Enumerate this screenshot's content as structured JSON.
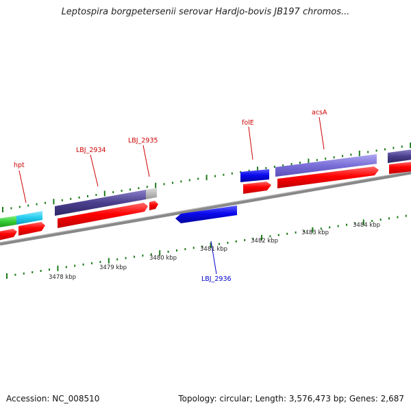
{
  "title": "Leptospira borgpetersenii serovar Hardjo-bovis JB197 chromos...",
  "accession": "Accession: NC_008510",
  "topology": "Topology: circular; Length: 3,576,473 bp; Genes: 2,687",
  "gene_labels": [
    {
      "id": "hpt",
      "text": "hpt",
      "color": "#cc0000"
    },
    {
      "id": "lbj-2934",
      "text": "LBJ_2934",
      "color": "#cc0000"
    },
    {
      "id": "lbj-2935",
      "text": "LBJ_2935",
      "color": "#cc0000"
    },
    {
      "id": "fole",
      "text": "folE",
      "color": "#cc0000"
    },
    {
      "id": "acsa",
      "text": "acsA",
      "color": "#cc0000"
    },
    {
      "id": "lbj-2936",
      "text": "LBJ_2936",
      "color": "#0000cc"
    }
  ],
  "scale_labels": [
    "3478 kbp",
    "3479 kbp",
    "3480 kbp",
    "3481 kbp",
    "3482 kbp",
    "3483 kbp",
    "3484 kbp"
  ],
  "colors": {
    "forward_gene": "#ff0000",
    "reverse_gene": "#0000ee",
    "cog_purple": "#4a3f8c",
    "cog_lavender": "#7a6fd8",
    "cog_cyan": "#22ccee",
    "cog_green": "#33cc33",
    "tick_green": "#1a7a1a",
    "backbone": "#888888"
  }
}
